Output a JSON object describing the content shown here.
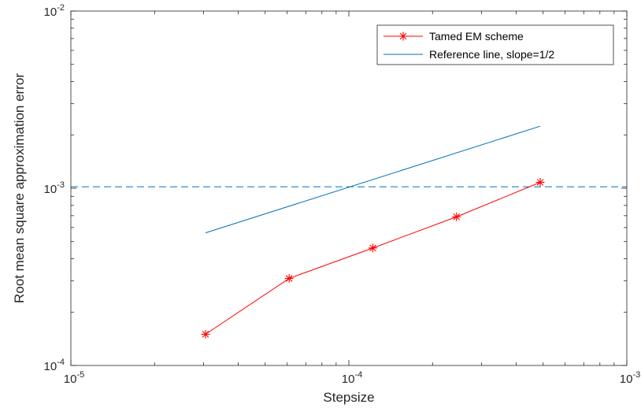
{
  "chart_data": {
    "type": "line",
    "x_scale": "log",
    "y_scale": "log",
    "xlabel": "Stepsize",
    "ylabel": "Root mean square approximation error",
    "xlim": [
      1e-05,
      0.001
    ],
    "ylim": [
      0.0001,
      0.01
    ],
    "x_ticks": [
      {
        "value": 1e-05,
        "base": "10",
        "exp": "-5"
      },
      {
        "value": 0.0001,
        "base": "10",
        "exp": "-4"
      },
      {
        "value": 0.001,
        "base": "10",
        "exp": "-3"
      }
    ],
    "y_ticks": [
      {
        "value": 0.0001,
        "base": "10",
        "exp": "-4"
      },
      {
        "value": 0.001,
        "base": "10",
        "exp": "-3"
      },
      {
        "value": 0.01,
        "base": "10",
        "exp": "-2"
      }
    ],
    "grid": false,
    "legend_position": "top-right",
    "series": [
      {
        "name": "Tamed EM scheme",
        "color": "#ff0000",
        "marker": "asterisk",
        "linestyle": "solid",
        "x": [
          3.05e-05,
          6.1e-05,
          0.000122,
          0.000244,
          0.000488
        ],
        "y": [
          0.00015,
          0.00031,
          0.00046,
          0.00069,
          0.00108
        ]
      },
      {
        "name": "Reference line, slope=1/2",
        "color": "#0072bd",
        "marker": "none",
        "linestyle": "solid",
        "x": [
          3.05e-05,
          0.000488
        ],
        "y": [
          0.00056,
          0.00224
        ]
      }
    ],
    "annotations": [
      {
        "type": "horizontal-dashed-line",
        "y": 0.00102,
        "color": "#0072bd"
      }
    ]
  }
}
